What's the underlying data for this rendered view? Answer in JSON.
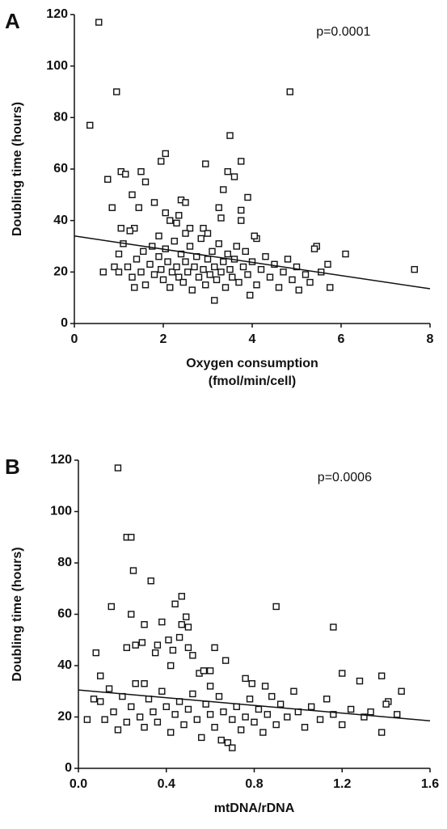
{
  "chart_data": [
    {
      "type": "scatter",
      "panel": "A",
      "annotation": "p=0.0001",
      "ylabel": "Doubling time  (hours)",
      "xlabel": [
        "Oxygen consumption",
        "(fmol/min/cell)"
      ],
      "xlim": [
        0,
        8
      ],
      "xticks": [
        0,
        2,
        4,
        6,
        8
      ],
      "ylim": [
        0,
        120
      ],
      "yticks": [
        0,
        20,
        40,
        60,
        80,
        100,
        120
      ],
      "color": "#111111",
      "trendline": {
        "x": [
          0,
          8
        ],
        "y": [
          34,
          13.5
        ]
      },
      "x": [
        0.55,
        0.35,
        0.95,
        4.85,
        1.05,
        1.15,
        0.75,
        1.5,
        1.6,
        2.05,
        1.95,
        3.5,
        3.75,
        2.95,
        3.6,
        3.35,
        3.45,
        1.3,
        1.45,
        0.85,
        1.8,
        2.05,
        2.35,
        2.4,
        2.5,
        3.25,
        3.9,
        3.75,
        3.3,
        3.75,
        2.15,
        1.05,
        1.35,
        2.6,
        2.9,
        1.25,
        2.3,
        4.1,
        4.05,
        7.65,
        6.1,
        5.7,
        5.75,
        5.45,
        5.4,
        0.65,
        3.15,
        3.95,
        1.0,
        0.9,
        5.55,
        5.05,
        1.2,
        1.3,
        1.4,
        1.5,
        1.55,
        1.6,
        1.7,
        1.75,
        1.8,
        1.9,
        1.95,
        2.0,
        2.05,
        2.1,
        2.15,
        2.2,
        2.25,
        2.3,
        2.35,
        2.4,
        2.45,
        2.5,
        2.55,
        2.6,
        2.65,
        2.7,
        2.75,
        2.8,
        2.85,
        2.9,
        2.95,
        3.0,
        3.05,
        3.1,
        3.15,
        3.2,
        3.25,
        3.3,
        3.35,
        3.4,
        3.45,
        3.5,
        3.55,
        3.6,
        3.65,
        3.7,
        3.8,
        3.85,
        3.9,
        4.0,
        4.1,
        4.2,
        4.3,
        4.4,
        4.5,
        4.6,
        4.7,
        4.8,
        4.9,
        5.0,
        5.2,
        5.3,
        1.1,
        1.0,
        1.35,
        2.5,
        3.0,
        1.9
      ],
      "values": [
        117,
        77,
        90,
        90,
        59,
        58,
        56,
        59,
        55,
        66,
        63,
        73,
        63,
        62,
        57,
        52,
        59,
        50,
        45,
        45,
        47,
        43,
        42,
        48,
        47,
        45,
        49,
        44,
        41,
        40,
        40,
        37,
        37,
        37,
        37,
        36,
        39,
        33,
        34,
        21,
        27,
        23,
        14,
        30,
        29,
        20,
        9,
        11,
        27,
        22,
        20,
        13,
        22,
        18,
        25,
        20,
        28,
        15,
        23,
        30,
        19,
        26,
        21,
        17,
        29,
        24,
        14,
        20,
        32,
        22,
        18,
        27,
        16,
        24,
        20,
        30,
        13,
        22,
        26,
        18,
        33,
        21,
        15,
        25,
        19,
        28,
        22,
        17,
        31,
        20,
        24,
        14,
        27,
        21,
        18,
        25,
        30,
        16,
        22,
        28,
        19,
        24,
        15,
        21,
        26,
        18,
        23,
        14,
        20,
        25,
        17,
        22,
        19,
        16,
        31,
        20,
        14,
        35,
        35,
        34
      ]
    },
    {
      "type": "scatter",
      "panel": "B",
      "annotation": "p=0.0006",
      "ylabel": "Doubling time  (hours)",
      "xlabel": [
        "mtDNA/rDNA"
      ],
      "xlim": [
        0,
        1.6
      ],
      "xticks": [
        {
          "value": 0,
          "label": "0.0"
        },
        0.4,
        0.8,
        1.2,
        1.6
      ],
      "ylim": [
        0,
        120
      ],
      "yticks": [
        0,
        20,
        40,
        60,
        80,
        100,
        120
      ],
      "color": "#111111",
      "trendline": {
        "x": [
          0,
          1.6
        ],
        "y": [
          30.5,
          18.5
        ]
      },
      "x": [
        0.18,
        0.22,
        0.24,
        0.25,
        0.33,
        0.15,
        0.24,
        0.47,
        0.44,
        0.9,
        1.16,
        0.3,
        0.49,
        0.47,
        0.38,
        0.5,
        0.46,
        0.41,
        0.36,
        0.26,
        0.22,
        0.29,
        0.35,
        0.43,
        0.5,
        0.52,
        0.62,
        0.67,
        0.08,
        0.1,
        0.42,
        0.55,
        0.57,
        0.6,
        0.76,
        0.79,
        1.2,
        1.38,
        1.41,
        1.4,
        1.47,
        1.45,
        1.38,
        1.28,
        0.04,
        0.07,
        0.1,
        0.12,
        0.14,
        0.16,
        0.18,
        0.2,
        0.22,
        0.24,
        0.26,
        0.28,
        0.3,
        0.32,
        0.34,
        0.36,
        0.38,
        0.4,
        0.42,
        0.44,
        0.46,
        0.48,
        0.5,
        0.52,
        0.54,
        0.56,
        0.58,
        0.6,
        0.62,
        0.64,
        0.66,
        0.68,
        0.7,
        0.72,
        0.74,
        0.76,
        0.78,
        0.8,
        0.82,
        0.84,
        0.86,
        0.88,
        0.9,
        0.92,
        0.95,
        0.98,
        1.0,
        1.03,
        1.06,
        1.1,
        1.13,
        1.16,
        1.2,
        1.24,
        1.3,
        1.33,
        0.7,
        0.65,
        0.3,
        0.6,
        0.85
      ],
      "values": [
        117,
        90,
        90,
        77,
        73,
        63,
        60,
        67,
        64,
        63,
        55,
        56,
        59,
        56,
        57,
        55,
        51,
        50,
        48,
        48,
        47,
        49,
        45,
        46,
        47,
        44,
        47,
        42,
        45,
        36,
        40,
        37,
        38,
        38,
        35,
        33,
        37,
        36,
        26,
        25,
        30,
        21,
        14,
        34,
        19,
        27,
        26,
        19,
        31,
        22,
        15,
        28,
        18,
        24,
        33,
        20,
        16,
        27,
        22,
        18,
        30,
        24,
        14,
        21,
        26,
        17,
        23,
        29,
        19,
        12,
        25,
        21,
        16,
        28,
        22,
        10,
        19,
        24,
        15,
        20,
        27,
        18,
        23,
        14,
        21,
        28,
        17,
        25,
        20,
        30,
        22,
        16,
        24,
        19,
        27,
        21,
        17,
        23,
        20,
        22,
        8,
        11,
        33,
        32,
        32
      ]
    }
  ]
}
